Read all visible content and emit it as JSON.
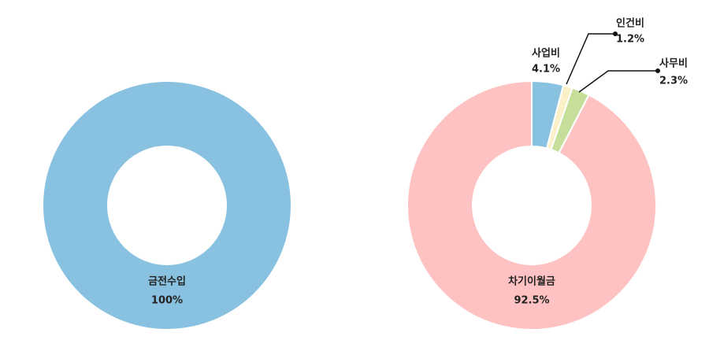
{
  "chart_data": [
    {
      "type": "pie",
      "categories": [
        "금전수입"
      ],
      "values": [
        100
      ],
      "value_labels": [
        "100%"
      ],
      "colors": [
        "#89c2e0"
      ]
    },
    {
      "type": "pie",
      "categories": [
        "사업비",
        "인건비",
        "사무비",
        "차기이월금"
      ],
      "values": [
        4.1,
        1.2,
        2.3,
        92.5
      ],
      "value_labels": [
        "4.1%",
        "1.2%",
        "2.3%",
        "92.5%"
      ],
      "colors": [
        "#89c2e0",
        "#fbf1c8",
        "#c5df9a",
        "#ffc2c2"
      ]
    }
  ]
}
